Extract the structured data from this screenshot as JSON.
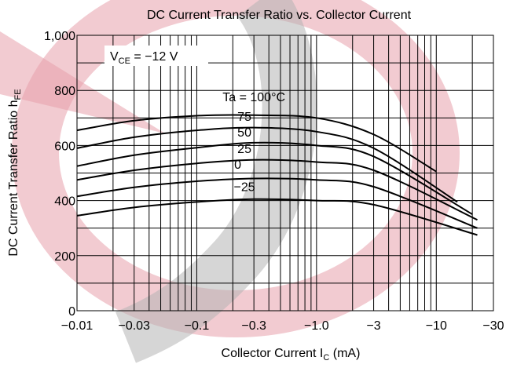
{
  "chart_data": {
    "type": "line",
    "title": "DC Current Transfer Ratio vs. Collector Current",
    "xlabel": {
      "main": "Collector Current  I",
      "sub": "C",
      "unit": "  (mA)"
    },
    "ylabel": {
      "main": "DC Current Transfer Ratio  h",
      "sub": "FE"
    },
    "x_scale": "log",
    "x_direction": "negative current, magnitude increases to the right",
    "xlim": [
      -0.01,
      -30
    ],
    "ylim": [
      0,
      1000
    ],
    "x_ticks": [
      {
        "v": -0.01,
        "label": "−0.01"
      },
      {
        "v": -0.03,
        "label": "−0.03"
      },
      {
        "v": -0.1,
        "label": "−0.1"
      },
      {
        "v": -0.3,
        "label": "−0.3"
      },
      {
        "v": -1.0,
        "label": "−1.0"
      },
      {
        "v": -3,
        "label": "−3"
      },
      {
        "v": -10,
        "label": "−10"
      },
      {
        "v": -30,
        "label": "−30"
      }
    ],
    "y_ticks": [
      {
        "v": 0,
        "label": "0"
      },
      {
        "v": 200,
        "label": "200"
      },
      {
        "v": 400,
        "label": "400"
      },
      {
        "v": 600,
        "label": "600"
      },
      {
        "v": 800,
        "label": "800"
      },
      {
        "v": 1000,
        "label": "1,000"
      }
    ],
    "grid": true,
    "condition": {
      "main": "V",
      "sub": "CE",
      "rest": " = −12 V"
    },
    "series": [
      {
        "name": "Ta = 100°C",
        "points": [
          [
            -0.01,
            655
          ],
          [
            -0.03,
            690
          ],
          [
            -0.1,
            708
          ],
          [
            -0.3,
            710
          ],
          [
            -1.0,
            700
          ],
          [
            -3,
            640
          ],
          [
            -10,
            505
          ]
        ]
      },
      {
        "name": "75",
        "points": [
          [
            -0.01,
            590
          ],
          [
            -0.03,
            630
          ],
          [
            -0.1,
            655
          ],
          [
            -0.3,
            665
          ],
          [
            -1.0,
            650
          ],
          [
            -3,
            590
          ],
          [
            -15,
            395
          ]
        ]
      },
      {
        "name": "50",
        "points": [
          [
            -0.01,
            525
          ],
          [
            -0.03,
            565
          ],
          [
            -0.1,
            592
          ],
          [
            -0.3,
            610
          ],
          [
            -1.0,
            600
          ],
          [
            -3,
            560
          ],
          [
            -20,
            350
          ]
        ]
      },
      {
        "name": "25",
        "points": [
          [
            -0.01,
            475
          ],
          [
            -0.03,
            510
          ],
          [
            -0.1,
            535
          ],
          [
            -0.3,
            548
          ],
          [
            -1.0,
            540
          ],
          [
            -3,
            510
          ],
          [
            -22,
            330
          ]
        ]
      },
      {
        "name": "0",
        "points": [
          [
            -0.01,
            415
          ],
          [
            -0.03,
            448
          ],
          [
            -0.1,
            470
          ],
          [
            -0.3,
            480
          ],
          [
            -1.0,
            475
          ],
          [
            -3,
            450
          ],
          [
            -22,
            300
          ]
        ]
      },
      {
        "name": "−25",
        "points": [
          [
            -0.01,
            345
          ],
          [
            -0.03,
            375
          ],
          [
            -0.1,
            395
          ],
          [
            -0.3,
            405
          ],
          [
            -1.0,
            400
          ],
          [
            -3,
            385
          ],
          [
            -22,
            275
          ]
        ]
      }
    ],
    "curve_labels": [
      {
        "text": "Ta = 100°C",
        "x": -0.3,
        "y": 760
      },
      {
        "text": "75",
        "x": -0.25,
        "y": 690
      },
      {
        "text": "50",
        "x": -0.25,
        "y": 632
      },
      {
        "text": "25",
        "x": -0.25,
        "y": 572
      },
      {
        "text": "0",
        "x": -0.22,
        "y": 515
      },
      {
        "text": "−25",
        "x": -0.25,
        "y": 435
      }
    ],
    "watermark_colors": {
      "pink": "#e8a1ab",
      "gray": "#b5b5b5"
    }
  }
}
